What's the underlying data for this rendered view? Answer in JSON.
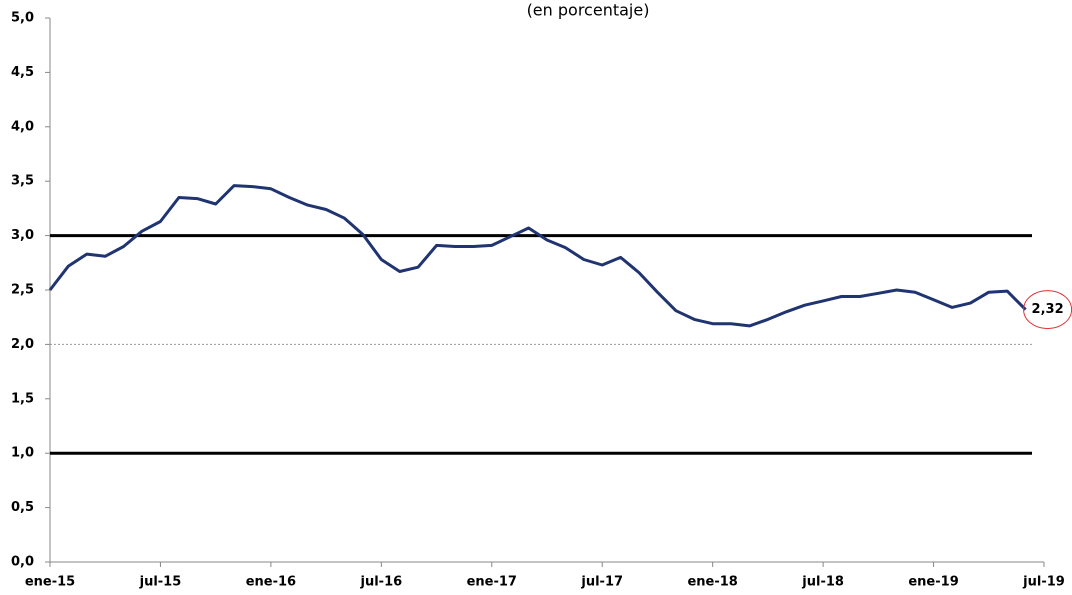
{
  "chart_data": {
    "type": "line",
    "subtitle": "(en porcentaje)",
    "categories": [
      "ene-15",
      null,
      null,
      null,
      null,
      null,
      "jul-15",
      null,
      null,
      null,
      null,
      null,
      "ene-16",
      null,
      null,
      null,
      null,
      null,
      "jul-16",
      null,
      null,
      null,
      null,
      null,
      "ene-17",
      null,
      null,
      null,
      null,
      null,
      "jul-17",
      null,
      null,
      null,
      null,
      null,
      "ene-18",
      null,
      null,
      null,
      null,
      null,
      "jul-18",
      null,
      null,
      null,
      null,
      null,
      "ene-19",
      null,
      null,
      null,
      null,
      null,
      "jul-19"
    ],
    "series": [
      {
        "color": "#1f3470",
        "values": [
          2.5,
          2.72,
          2.83,
          2.81,
          2.9,
          3.04,
          3.13,
          3.35,
          3.34,
          3.29,
          3.46,
          3.45,
          3.43,
          3.35,
          3.28,
          3.24,
          3.16,
          3.01,
          2.78,
          2.67,
          2.71,
          2.91,
          2.9,
          2.9,
          2.91,
          2.99,
          3.07,
          2.96,
          2.89,
          2.78,
          2.73,
          2.8,
          2.66,
          2.48,
          2.31,
          2.23,
          2.19,
          2.19,
          2.17,
          2.23,
          2.3,
          2.36,
          2.4,
          2.44,
          2.44,
          2.47,
          2.5,
          2.48,
          2.41,
          2.34,
          2.38,
          2.48,
          2.49,
          2.32,
          null
        ],
        "value_labels": [
          null,
          null,
          null,
          null,
          null,
          null,
          null,
          null,
          null,
          null,
          null,
          null,
          null,
          null,
          null,
          null,
          null,
          null,
          null,
          null,
          null,
          null,
          null,
          null,
          null,
          null,
          null,
          null,
          null,
          null,
          null,
          null,
          null,
          null,
          null,
          null,
          null,
          null,
          null,
          null,
          null,
          null,
          null,
          null,
          null,
          null,
          null,
          null,
          null,
          null,
          null,
          null,
          null,
          "2,32",
          null
        ]
      }
    ],
    "ylim": [
      0,
      5
    ],
    "yticks": [
      {
        "value": 0,
        "label": "0,0"
      },
      {
        "value": 0.5,
        "label": "0,5"
      },
      {
        "value": 1,
        "label": "1,0"
      },
      {
        "value": 1.5,
        "label": "1,5"
      },
      {
        "value": 2,
        "label": "2,0"
      },
      {
        "value": 2.5,
        "label": "2,5"
      },
      {
        "value": 3,
        "label": "3,0"
      },
      {
        "value": 3.5,
        "label": "3,5"
      },
      {
        "value": 4,
        "label": "4,0"
      },
      {
        "value": 4.5,
        "label": "4,5"
      },
      {
        "value": 5,
        "label": "5,0"
      }
    ],
    "hlines": [
      {
        "value": 3,
        "style": "solid"
      },
      {
        "value": 1,
        "style": "solid"
      },
      {
        "value": 2,
        "style": "dotted"
      }
    ]
  }
}
